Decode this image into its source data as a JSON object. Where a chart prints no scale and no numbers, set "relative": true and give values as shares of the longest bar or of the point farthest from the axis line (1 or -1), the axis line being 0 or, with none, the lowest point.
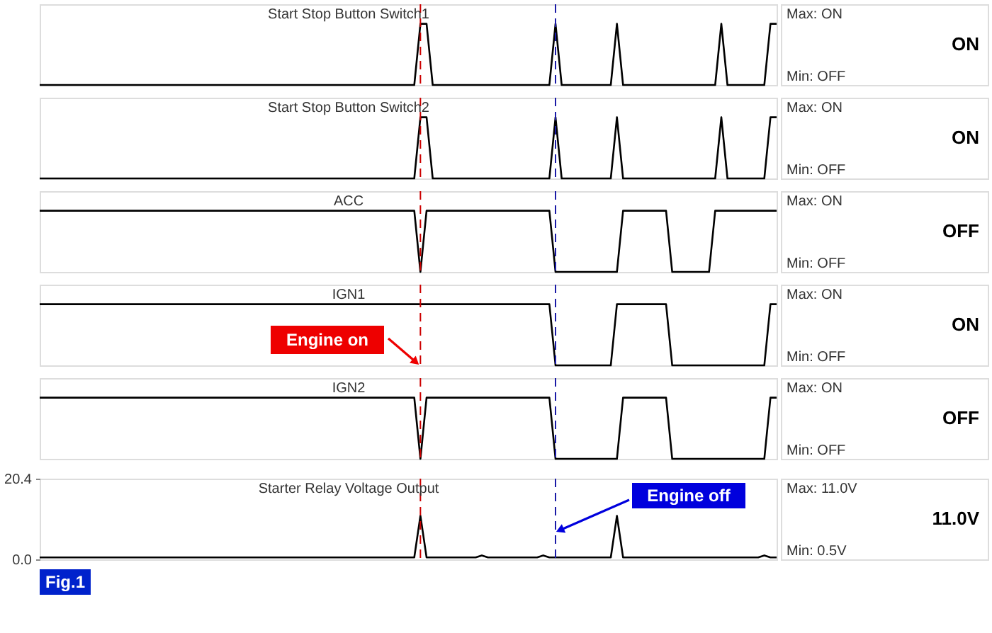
{
  "chart_data": [
    {
      "type": "line",
      "title": "Start Stop Button Switch1",
      "relative": true,
      "color": "#000000",
      "categories": [
        null,
        null,
        null,
        null,
        null,
        null,
        null,
        null,
        null,
        null,
        null,
        null,
        null,
        null,
        null,
        null,
        null,
        null,
        null,
        null,
        null,
        null,
        null,
        null,
        null,
        null,
        null,
        null,
        null,
        null,
        null,
        null,
        null,
        null,
        null,
        null,
        null,
        null,
        null,
        null,
        null,
        null,
        null,
        null,
        null,
        null,
        null,
        null,
        null,
        null,
        null,
        null,
        null,
        null,
        null,
        null,
        null,
        null,
        null,
        null,
        null,
        null,
        null,
        null,
        null,
        null,
        null,
        null,
        null,
        null,
        null,
        null,
        null,
        null,
        null,
        null,
        null,
        null,
        null,
        null,
        null,
        null,
        null,
        null,
        null,
        null,
        null,
        null,
        null,
        null,
        null,
        null,
        null,
        null,
        null,
        null,
        null,
        null,
        null,
        null,
        null,
        null,
        null,
        null,
        null,
        null,
        null,
        null,
        null,
        null,
        null,
        null,
        null,
        null,
        null,
        null,
        null,
        null,
        null,
        null,
        null
      ],
      "values": [
        0,
        0,
        0,
        0,
        0,
        0,
        0,
        0,
        0,
        0,
        0,
        0,
        0,
        0,
        0,
        0,
        0,
        0,
        0,
        0,
        0,
        0,
        0,
        0,
        0,
        0,
        0,
        0,
        0,
        0,
        0,
        0,
        0,
        0,
        0,
        0,
        0,
        0,
        0,
        0,
        0,
        0,
        0,
        0,
        0,
        0,
        0,
        0,
        0,
        0,
        0,
        0,
        0,
        0,
        0,
        0,
        0,
        0,
        0,
        0,
        0,
        0,
        1,
        1,
        0,
        0,
        0,
        0,
        0,
        0,
        0,
        0,
        0,
        0,
        0,
        0,
        0,
        0,
        0,
        0,
        0,
        0,
        0,
        0,
        1,
        0,
        0,
        0,
        0,
        0,
        0,
        0,
        0,
        0,
        1,
        0,
        0,
        0,
        0,
        0,
        0,
        0,
        0,
        0,
        0,
        0,
        0,
        0,
        0,
        0,
        0,
        1,
        0,
        0,
        0,
        0,
        0,
        0,
        0,
        1,
        1
      ],
      "annotations": [
        "Max: ON",
        "Min: OFF",
        "ON"
      ]
    },
    {
      "type": "line",
      "title": "Start Stop Button Switch2",
      "relative": true,
      "color": "#000000",
      "categories": [
        null,
        null,
        null,
        null,
        null,
        null,
        null,
        null,
        null,
        null,
        null,
        null,
        null,
        null,
        null,
        null,
        null,
        null,
        null,
        null,
        null,
        null,
        null,
        null,
        null,
        null,
        null,
        null,
        null,
        null,
        null,
        null,
        null,
        null,
        null,
        null,
        null,
        null,
        null,
        null,
        null,
        null,
        null,
        null,
        null,
        null,
        null,
        null,
        null,
        null,
        null,
        null,
        null,
        null,
        null,
        null,
        null,
        null,
        null,
        null,
        null,
        null,
        null,
        null,
        null,
        null,
        null,
        null,
        null,
        null,
        null,
        null,
        null,
        null,
        null,
        null,
        null,
        null,
        null,
        null,
        null,
        null,
        null,
        null,
        null,
        null,
        null,
        null,
        null,
        null,
        null,
        null,
        null,
        null,
        null,
        null,
        null,
        null,
        null,
        null,
        null,
        null,
        null,
        null,
        null,
        null,
        null,
        null,
        null,
        null,
        null,
        null,
        null,
        null,
        null,
        null,
        null,
        null,
        null,
        null,
        null
      ],
      "values": [
        0,
        0,
        0,
        0,
        0,
        0,
        0,
        0,
        0,
        0,
        0,
        0,
        0,
        0,
        0,
        0,
        0,
        0,
        0,
        0,
        0,
        0,
        0,
        0,
        0,
        0,
        0,
        0,
        0,
        0,
        0,
        0,
        0,
        0,
        0,
        0,
        0,
        0,
        0,
        0,
        0,
        0,
        0,
        0,
        0,
        0,
        0,
        0,
        0,
        0,
        0,
        0,
        0,
        0,
        0,
        0,
        0,
        0,
        0,
        0,
        0,
        0,
        1,
        1,
        0,
        0,
        0,
        0,
        0,
        0,
        0,
        0,
        0,
        0,
        0,
        0,
        0,
        0,
        0,
        0,
        0,
        0,
        0,
        0,
        1,
        0,
        0,
        0,
        0,
        0,
        0,
        0,
        0,
        0,
        1,
        0,
        0,
        0,
        0,
        0,
        0,
        0,
        0,
        0,
        0,
        0,
        0,
        0,
        0,
        0,
        0,
        1,
        0,
        0,
        0,
        0,
        0,
        0,
        0,
        1,
        1
      ],
      "annotations": [
        "Max: ON",
        "Min: OFF",
        "ON"
      ]
    },
    {
      "type": "line",
      "title": "ACC",
      "relative": true,
      "color": "#000000",
      "categories": [
        null,
        null,
        null,
        null,
        null,
        null,
        null,
        null,
        null,
        null,
        null,
        null,
        null,
        null,
        null,
        null,
        null,
        null,
        null,
        null,
        null,
        null,
        null,
        null,
        null,
        null,
        null,
        null,
        null,
        null,
        null,
        null,
        null,
        null,
        null,
        null,
        null,
        null,
        null,
        null,
        null,
        null,
        null,
        null,
        null,
        null,
        null,
        null,
        null,
        null,
        null,
        null,
        null,
        null,
        null,
        null,
        null,
        null,
        null,
        null,
        null,
        null,
        null,
        null,
        null,
        null,
        null,
        null,
        null,
        null,
        null,
        null,
        null,
        null,
        null,
        null,
        null,
        null,
        null,
        null,
        null,
        null,
        null,
        null,
        null,
        null,
        null,
        null,
        null,
        null,
        null,
        null,
        null,
        null,
        null,
        null,
        null,
        null,
        null,
        null,
        null,
        null,
        null,
        null,
        null,
        null,
        null,
        null,
        null,
        null,
        null,
        null,
        null,
        null,
        null,
        null,
        null,
        null,
        null,
        null,
        null
      ],
      "values": [
        1,
        1,
        1,
        1,
        1,
        1,
        1,
        1,
        1,
        1,
        1,
        1,
        1,
        1,
        1,
        1,
        1,
        1,
        1,
        1,
        1,
        1,
        1,
        1,
        1,
        1,
        1,
        1,
        1,
        1,
        1,
        1,
        1,
        1,
        1,
        1,
        1,
        1,
        1,
        1,
        1,
        1,
        1,
        1,
        1,
        1,
        1,
        1,
        1,
        1,
        1,
        1,
        1,
        1,
        1,
        1,
        1,
        1,
        1,
        1,
        1,
        1,
        0,
        1,
        1,
        1,
        1,
        1,
        1,
        1,
        1,
        1,
        1,
        1,
        1,
        1,
        1,
        1,
        1,
        1,
        1,
        1,
        1,
        1,
        0,
        0,
        0,
        0,
        0,
        0,
        0,
        0,
        0,
        0,
        0,
        1,
        1,
        1,
        1,
        1,
        1,
        1,
        1,
        0,
        0,
        0,
        0,
        0,
        0,
        0,
        1,
        1,
        1,
        1,
        1,
        1,
        1,
        1,
        1,
        1,
        1
      ],
      "annotations": [
        "Max: ON",
        "Min: OFF",
        "OFF"
      ]
    },
    {
      "type": "line",
      "title": "IGN1",
      "relative": true,
      "color": "#000000",
      "categories": [
        null,
        null,
        null,
        null,
        null,
        null,
        null,
        null,
        null,
        null,
        null,
        null,
        null,
        null,
        null,
        null,
        null,
        null,
        null,
        null,
        null,
        null,
        null,
        null,
        null,
        null,
        null,
        null,
        null,
        null,
        null,
        null,
        null,
        null,
        null,
        null,
        null,
        null,
        null,
        null,
        null,
        null,
        null,
        null,
        null,
        null,
        null,
        null,
        null,
        null,
        null,
        null,
        null,
        null,
        null,
        null,
        null,
        null,
        null,
        null,
        null,
        null,
        null,
        null,
        null,
        null,
        null,
        null,
        null,
        null,
        null,
        null,
        null,
        null,
        null,
        null,
        null,
        null,
        null,
        null,
        null,
        null,
        null,
        null,
        null,
        null,
        null,
        null,
        null,
        null,
        null,
        null,
        null,
        null,
        null,
        null,
        null,
        null,
        null,
        null,
        null,
        null,
        null,
        null,
        null,
        null,
        null,
        null,
        null,
        null,
        null,
        null,
        null,
        null,
        null,
        null,
        null,
        null,
        null,
        null,
        null
      ],
      "values": [
        1,
        1,
        1,
        1,
        1,
        1,
        1,
        1,
        1,
        1,
        1,
        1,
        1,
        1,
        1,
        1,
        1,
        1,
        1,
        1,
        1,
        1,
        1,
        1,
        1,
        1,
        1,
        1,
        1,
        1,
        1,
        1,
        1,
        1,
        1,
        1,
        1,
        1,
        1,
        1,
        1,
        1,
        1,
        1,
        1,
        1,
        1,
        1,
        1,
        1,
        1,
        1,
        1,
        1,
        1,
        1,
        1,
        1,
        1,
        1,
        1,
        1,
        1,
        1,
        1,
        1,
        1,
        1,
        1,
        1,
        1,
        1,
        1,
        1,
        1,
        1,
        1,
        1,
        1,
        1,
        1,
        1,
        1,
        1,
        0,
        0,
        0,
        0,
        0,
        0,
        0,
        0,
        0,
        0,
        1,
        1,
        1,
        1,
        1,
        1,
        1,
        1,
        1,
        0,
        0,
        0,
        0,
        0,
        0,
        0,
        0,
        0,
        0,
        0,
        0,
        0,
        0,
        0,
        0,
        1,
        1
      ],
      "annotations": [
        "Max: ON",
        "Min: OFF",
        "ON",
        "Engine on"
      ]
    },
    {
      "type": "line",
      "title": "IGN2",
      "relative": true,
      "color": "#000000",
      "categories": [
        null,
        null,
        null,
        null,
        null,
        null,
        null,
        null,
        null,
        null,
        null,
        null,
        null,
        null,
        null,
        null,
        null,
        null,
        null,
        null,
        null,
        null,
        null,
        null,
        null,
        null,
        null,
        null,
        null,
        null,
        null,
        null,
        null,
        null,
        null,
        null,
        null,
        null,
        null,
        null,
        null,
        null,
        null,
        null,
        null,
        null,
        null,
        null,
        null,
        null,
        null,
        null,
        null,
        null,
        null,
        null,
        null,
        null,
        null,
        null,
        null,
        null,
        null,
        null,
        null,
        null,
        null,
        null,
        null,
        null,
        null,
        null,
        null,
        null,
        null,
        null,
        null,
        null,
        null,
        null,
        null,
        null,
        null,
        null,
        null,
        null,
        null,
        null,
        null,
        null,
        null,
        null,
        null,
        null,
        null,
        null,
        null,
        null,
        null,
        null,
        null,
        null,
        null,
        null,
        null,
        null,
        null,
        null,
        null,
        null,
        null,
        null,
        null,
        null,
        null,
        null,
        null,
        null,
        null,
        null,
        null
      ],
      "values": [
        1,
        1,
        1,
        1,
        1,
        1,
        1,
        1,
        1,
        1,
        1,
        1,
        1,
        1,
        1,
        1,
        1,
        1,
        1,
        1,
        1,
        1,
        1,
        1,
        1,
        1,
        1,
        1,
        1,
        1,
        1,
        1,
        1,
        1,
        1,
        1,
        1,
        1,
        1,
        1,
        1,
        1,
        1,
        1,
        1,
        1,
        1,
        1,
        1,
        1,
        1,
        1,
        1,
        1,
        1,
        1,
        1,
        1,
        1,
        1,
        1,
        1,
        0,
        1,
        1,
        1,
        1,
        1,
        1,
        1,
        1,
        1,
        1,
        1,
        1,
        1,
        1,
        1,
        1,
        1,
        1,
        1,
        1,
        1,
        0,
        0,
        0,
        0,
        0,
        0,
        0,
        0,
        0,
        0,
        0,
        1,
        1,
        1,
        1,
        1,
        1,
        1,
        1,
        0,
        0,
        0,
        0,
        0,
        0,
        0,
        0,
        0,
        0,
        0,
        0,
        0,
        0,
        0,
        0,
        1,
        1
      ],
      "annotations": [
        "Max: ON",
        "Min: OFF",
        "OFF"
      ]
    },
    {
      "type": "line",
      "title": "Starter Relay Voltage Output",
      "color": "#000000",
      "ylim": [
        0,
        20.4
      ],
      "yticks": [
        {
          "value": 0,
          "label": "0.0"
        },
        20.4
      ],
      "tick_labels": "y",
      "categories": [
        null,
        null,
        null,
        null,
        null,
        null,
        null,
        null,
        null,
        null,
        null,
        null,
        null,
        null,
        null,
        null,
        null,
        null,
        null,
        null,
        null,
        null,
        null,
        null,
        null,
        null,
        null,
        null,
        null,
        null,
        null,
        null,
        null,
        null,
        null,
        null,
        null,
        null,
        null,
        null,
        null,
        null,
        null,
        null,
        null,
        null,
        null,
        null,
        null,
        null,
        null,
        null,
        null,
        null,
        null,
        null,
        null,
        null,
        null,
        null,
        null,
        null,
        null,
        null,
        null,
        null,
        null,
        null,
        null,
        null,
        null,
        null,
        null,
        null,
        null,
        null,
        null,
        null,
        null,
        null,
        null,
        null,
        null,
        null,
        null,
        null,
        null,
        null,
        null,
        null,
        null,
        null,
        null,
        null,
        null,
        null,
        null,
        null,
        null,
        null,
        null,
        null,
        null,
        null,
        null,
        null,
        null,
        null,
        null,
        null,
        null,
        null,
        null,
        null,
        null,
        null,
        null,
        null,
        null,
        null,
        null
      ],
      "values": [
        0.5,
        0.5,
        0.5,
        0.5,
        0.5,
        0.5,
        0.5,
        0.5,
        0.5,
        0.5,
        0.5,
        0.5,
        0.5,
        0.5,
        0.5,
        0.5,
        0.5,
        0.5,
        0.5,
        0.5,
        0.5,
        0.5,
        0.5,
        0.5,
        0.5,
        0.5,
        0.5,
        0.5,
        0.5,
        0.5,
        0.5,
        0.5,
        0.5,
        0.5,
        0.5,
        0.5,
        0.5,
        0.5,
        0.5,
        0.5,
        0.5,
        0.5,
        0.5,
        0.5,
        0.5,
        0.5,
        0.5,
        0.5,
        0.5,
        0.5,
        0.5,
        0.5,
        0.5,
        0.5,
        0.5,
        0.5,
        0.5,
        0.5,
        0.5,
        0.5,
        0.5,
        0.5,
        11.0,
        0.5,
        0.5,
        0.5,
        0.5,
        0.5,
        0.5,
        0.5,
        0.5,
        0.5,
        1.0,
        0.5,
        0.5,
        0.5,
        0.5,
        0.5,
        0.5,
        0.5,
        0.5,
        0.5,
        1.0,
        0.5,
        0.5,
        0.5,
        0.5,
        0.5,
        0.5,
        0.5,
        0.5,
        0.5,
        0.5,
        0.5,
        11.0,
        0.5,
        0.5,
        0.5,
        0.5,
        0.5,
        0.5,
        0.5,
        0.5,
        0.5,
        0.5,
        0.5,
        0.5,
        0.5,
        0.5,
        0.5,
        0.5,
        0.5,
        0.5,
        0.5,
        0.5,
        0.5,
        0.5,
        0.5,
        1.0,
        0.5,
        0.5
      ],
      "annotations": [
        "Max:  11.0V",
        "Min:   0.5V",
        "11.0V",
        "Engine off",
        "Fig.1"
      ]
    }
  ]
}
